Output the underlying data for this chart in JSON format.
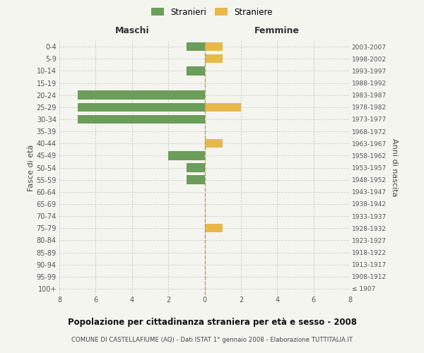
{
  "age_groups": [
    "100+",
    "95-99",
    "90-94",
    "85-89",
    "80-84",
    "75-79",
    "70-74",
    "65-69",
    "60-64",
    "55-59",
    "50-54",
    "45-49",
    "40-44",
    "35-39",
    "30-34",
    "25-29",
    "20-24",
    "15-19",
    "10-14",
    "5-9",
    "0-4"
  ],
  "birth_years": [
    "≤ 1907",
    "1908-1912",
    "1913-1917",
    "1918-1922",
    "1923-1927",
    "1928-1932",
    "1933-1937",
    "1938-1942",
    "1943-1947",
    "1948-1952",
    "1953-1957",
    "1958-1962",
    "1963-1967",
    "1968-1972",
    "1973-1977",
    "1978-1982",
    "1983-1987",
    "1988-1992",
    "1993-1997",
    "1998-2002",
    "2003-2007"
  ],
  "maschi_stranieri": [
    0,
    0,
    0,
    0,
    0,
    0,
    0,
    0,
    0,
    1,
    1,
    2,
    0,
    0,
    7,
    7,
    7,
    0,
    1,
    0,
    1
  ],
  "femmine_straniere": [
    0,
    0,
    0,
    0,
    0,
    1,
    0,
    0,
    0,
    0,
    0,
    0,
    1,
    0,
    0,
    2,
    0,
    0,
    0,
    1,
    1
  ],
  "color_stranieri": "#6a9e5a",
  "color_straniere": "#e8b84b",
  "title": "Popolazione per cittadinanza straniera per età e sesso - 2008",
  "subtitle": "COMUNE DI CASTELLAFIUME (AQ) - Dati ISTAT 1° gennaio 2008 - Elaborazione TUTTITALIA.IT",
  "xlabel_left": "Maschi",
  "xlabel_right": "Femmine",
  "ylabel": "Fasce di età",
  "ylabel_right": "Anni di nascita",
  "legend_stranieri": "Stranieri",
  "legend_straniere": "Straniere",
  "xlim": 8,
  "background_color": "#f5f5f0"
}
